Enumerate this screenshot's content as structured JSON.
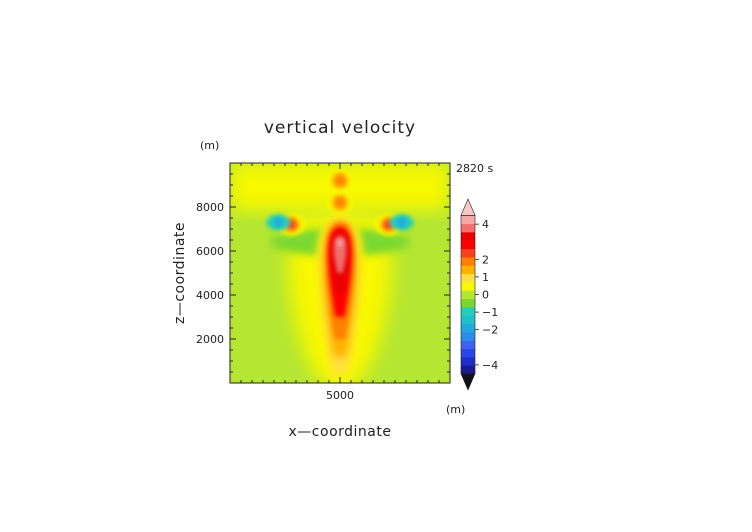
{
  "chart_data": {
    "type": "heatmap",
    "title": "vertical velocity",
    "time_label": "2820 s",
    "xlabel": "x—coordinate",
    "ylabel": "z—coordinate",
    "x_unit": "(m)",
    "y_unit": "(m)",
    "xlim": [
      0,
      10000
    ],
    "ylim": [
      0,
      10000
    ],
    "x_ticks": [
      5000
    ],
    "y_ticks": [
      2000,
      4000,
      6000,
      8000
    ],
    "colorbar": {
      "levels": [
        -5,
        -4.5,
        -4,
        -3.5,
        -3,
        -2.5,
        -2,
        -1.5,
        -1,
        -0.5,
        0,
        0.5,
        1,
        1.5,
        2,
        2.5,
        3,
        3.5,
        4,
        4.5,
        5
      ],
      "colors": [
        "#101018",
        "#1a1a90",
        "#1e2cc8",
        "#2a46e8",
        "#3c64f0",
        "#2c8ce8",
        "#22a8e0",
        "#1fc0c8",
        "#22d0b8",
        "#7cd830",
        "#b4e632",
        "#f8f800",
        "#ffe040",
        "#ffb000",
        "#ff8000",
        "#ff4020",
        "#ff0000",
        "#e80000",
        "#f07070",
        "#f8a8a8",
        "#f8c8c8"
      ],
      "tick_values": [
        -4,
        -2,
        -1,
        0,
        1,
        2,
        4
      ],
      "extend": "both"
    },
    "features": [
      {
        "shape": "plume",
        "x": 5000,
        "z_base": 400,
        "z_top": 7600,
        "peak": 5,
        "note": "central updraft"
      },
      {
        "shape": "blob",
        "x": 2800,
        "z": 7200,
        "value": 2.5
      },
      {
        "shape": "blob",
        "x": 7200,
        "z": 7200,
        "value": 2.5
      },
      {
        "shape": "blob",
        "x": 2200,
        "z": 7300,
        "value": -2
      },
      {
        "shape": "blob",
        "x": 7800,
        "z": 7300,
        "value": -2
      },
      {
        "shape": "blob",
        "x": 5000,
        "z": 8200,
        "value": 2
      },
      {
        "shape": "blob",
        "x": 5000,
        "z": 9200,
        "value": 2
      }
    ]
  }
}
